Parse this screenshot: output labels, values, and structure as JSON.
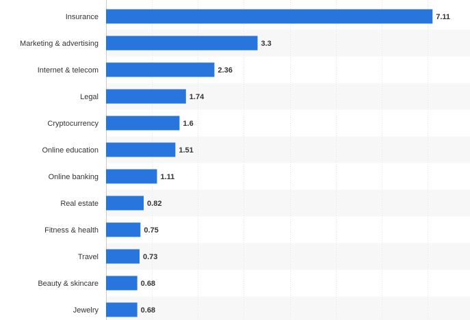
{
  "chart_data": {
    "type": "bar",
    "orientation": "horizontal",
    "categories": [
      "Insurance",
      "Marketing & advertising",
      "Internet & telecom",
      "Legal",
      "Cryptocurrency",
      "Online education",
      "Online banking",
      "Real estate",
      "Fitness & health",
      "Travel",
      "Beauty & skincare",
      "Jewelry"
    ],
    "values": [
      7.11,
      3.3,
      2.36,
      1.74,
      1.6,
      1.51,
      1.11,
      0.82,
      0.75,
      0.73,
      0.68,
      0.68
    ],
    "value_labels": [
      "7.11",
      "3.3",
      "2.36",
      "1.74",
      "1.6",
      "1.51",
      "1.11",
      "0.82",
      "0.75",
      "0.73",
      "0.68",
      "0.68"
    ],
    "xlim": [
      0,
      8
    ],
    "xticks": [
      0,
      1,
      2,
      3,
      4,
      5,
      6,
      7,
      8
    ],
    "grid": true,
    "bar_color": "#2876dd",
    "band_color": "#f7f7f7",
    "grid_color": "#e6e6e6",
    "title": "",
    "xlabel": "",
    "ylabel": ""
  }
}
